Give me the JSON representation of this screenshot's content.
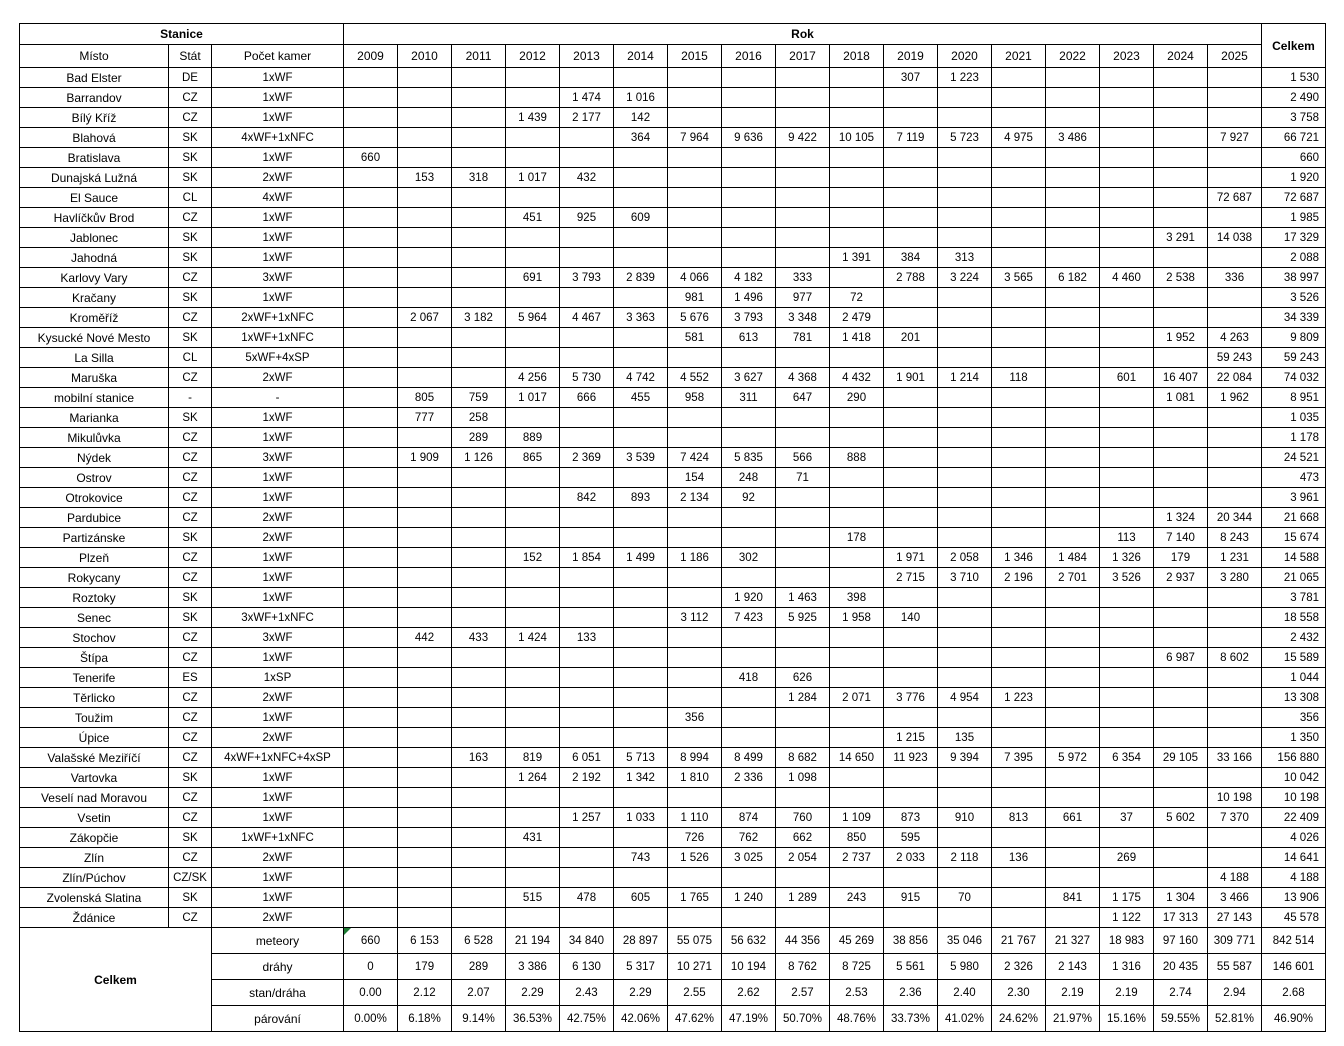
{
  "header": {
    "stanice": "Stanice",
    "rok": "Rok",
    "celkem": "Celkem",
    "misto": "Místo",
    "stat": "Stát",
    "pocet_kamer": "Počet kamer",
    "years": [
      "2009",
      "2010",
      "2011",
      "2012",
      "2013",
      "2014",
      "2015",
      "2016",
      "2017",
      "2018",
      "2019",
      "2020",
      "2021",
      "2022",
      "2023",
      "2024",
      "2025"
    ]
  },
  "rows": [
    {
      "misto": "Bad Elster",
      "stat": "DE",
      "kamery": "1xWF",
      "values": [
        "",
        "",
        "",
        "",
        "",
        "",
        "",
        "",
        "",
        "",
        "307",
        "1 223",
        "",
        "",
        "",
        "",
        ""
      ],
      "celkem": "1 530"
    },
    {
      "misto": "Barrandov",
      "stat": "CZ",
      "kamery": "1xWF",
      "values": [
        "",
        "",
        "",
        "",
        "1 474",
        "1 016",
        "",
        "",
        "",
        "",
        "",
        "",
        "",
        "",
        "",
        "",
        ""
      ],
      "celkem": "2 490"
    },
    {
      "misto": "Bílý Kříž",
      "stat": "CZ",
      "kamery": "1xWF",
      "values": [
        "",
        "",
        "",
        "1 439",
        "2 177",
        "142",
        "",
        "",
        "",
        "",
        "",
        "",
        "",
        "",
        "",
        "",
        ""
      ],
      "celkem": "3 758"
    },
    {
      "misto": "Blahová",
      "stat": "SK",
      "kamery": "4xWF+1xNFC",
      "values": [
        "",
        "",
        "",
        "",
        "",
        "364",
        "7 964",
        "9 636",
        "9 422",
        "10 105",
        "7 119",
        "5 723",
        "4 975",
        "3 486",
        "",
        "",
        "7 927"
      ],
      "celkem": "66 721"
    },
    {
      "misto": "Bratislava",
      "stat": "SK",
      "kamery": "1xWF",
      "values": [
        "660",
        "",
        "",
        "",
        "",
        "",
        "",
        "",
        "",
        "",
        "",
        "",
        "",
        "",
        "",
        "",
        ""
      ],
      "celkem": "660"
    },
    {
      "misto": "Dunajská Lužná",
      "stat": "SK",
      "kamery": "2xWF",
      "values": [
        "",
        "153",
        "318",
        "1 017",
        "432",
        "",
        "",
        "",
        "",
        "",
        "",
        "",
        "",
        "",
        "",
        "",
        ""
      ],
      "celkem": "1 920"
    },
    {
      "misto": "El Sauce",
      "stat": "CL",
      "kamery": "4xWF",
      "values": [
        "",
        "",
        "",
        "",
        "",
        "",
        "",
        "",
        "",
        "",
        "",
        "",
        "",
        "",
        "",
        "",
        "72 687"
      ],
      "celkem": "72 687"
    },
    {
      "misto": "Havlíčkův Brod",
      "stat": "CZ",
      "kamery": "1xWF",
      "values": [
        "",
        "",
        "",
        "451",
        "925",
        "609",
        "",
        "",
        "",
        "",
        "",
        "",
        "",
        "",
        "",
        "",
        ""
      ],
      "celkem": "1 985"
    },
    {
      "misto": "Jablonec",
      "stat": "SK",
      "kamery": "1xWF",
      "values": [
        "",
        "",
        "",
        "",
        "",
        "",
        "",
        "",
        "",
        "",
        "",
        "",
        "",
        "",
        "",
        "3 291",
        "14 038"
      ],
      "celkem": "17 329"
    },
    {
      "misto": "Jahodná",
      "stat": "SK",
      "kamery": "1xWF",
      "values": [
        "",
        "",
        "",
        "",
        "",
        "",
        "",
        "",
        "",
        "1 391",
        "384",
        "313",
        "",
        "",
        "",
        "",
        ""
      ],
      "celkem": "2 088"
    },
    {
      "misto": "Karlovy Vary",
      "stat": "CZ",
      "kamery": "3xWF",
      "values": [
        "",
        "",
        "",
        "691",
        "3 793",
        "2 839",
        "4 066",
        "4 182",
        "333",
        "",
        "2 788",
        "3 224",
        "3 565",
        "6 182",
        "4 460",
        "2 538",
        "336"
      ],
      "celkem": "38 997"
    },
    {
      "misto": "Kračany",
      "stat": "SK",
      "kamery": "1xWF",
      "values": [
        "",
        "",
        "",
        "",
        "",
        "",
        "981",
        "1 496",
        "977",
        "72",
        "",
        "",
        "",
        "",
        "",
        "",
        ""
      ],
      "celkem": "3 526"
    },
    {
      "misto": "Kroměříž",
      "stat": "CZ",
      "kamery": "2xWF+1xNFC",
      "values": [
        "",
        "2 067",
        "3 182",
        "5 964",
        "4 467",
        "3 363",
        "5 676",
        "3 793",
        "3 348",
        "2 479",
        "",
        "",
        "",
        "",
        "",
        "",
        ""
      ],
      "celkem": "34 339"
    },
    {
      "misto": "Kysucké Nové Mesto",
      "stat": "SK",
      "kamery": "1xWF+1xNFC",
      "values": [
        "",
        "",
        "",
        "",
        "",
        "",
        "581",
        "613",
        "781",
        "1 418",
        "201",
        "",
        "",
        "",
        "",
        "1 952",
        "4 263"
      ],
      "celkem": "9 809"
    },
    {
      "misto": "La Silla",
      "stat": "CL",
      "kamery": "5xWF+4xSP",
      "values": [
        "",
        "",
        "",
        "",
        "",
        "",
        "",
        "",
        "",
        "",
        "",
        "",
        "",
        "",
        "",
        "",
        "59 243"
      ],
      "celkem": "59 243"
    },
    {
      "misto": "Maruška",
      "stat": "CZ",
      "kamery": "2xWF",
      "values": [
        "",
        "",
        "",
        "4 256",
        "5 730",
        "4 742",
        "4 552",
        "3 627",
        "4 368",
        "4 432",
        "1 901",
        "1 214",
        "118",
        "",
        "601",
        "16 407",
        "22 084"
      ],
      "celkem": "74 032"
    },
    {
      "misto": "mobilní stanice",
      "stat": "-",
      "kamery": "-",
      "values": [
        "",
        "805",
        "759",
        "1 017",
        "666",
        "455",
        "958",
        "311",
        "647",
        "290",
        "",
        "",
        "",
        "",
        "",
        "1 081",
        "1 962"
      ],
      "celkem": "8 951"
    },
    {
      "misto": "Marianka",
      "stat": "SK",
      "kamery": "1xWF",
      "values": [
        "",
        "777",
        "258",
        "",
        "",
        "",
        "",
        "",
        "",
        "",
        "",
        "",
        "",
        "",
        "",
        "",
        ""
      ],
      "celkem": "1 035"
    },
    {
      "misto": "Mikulůvka",
      "stat": "CZ",
      "kamery": "1xWF",
      "values": [
        "",
        "",
        "289",
        "889",
        "",
        "",
        "",
        "",
        "",
        "",
        "",
        "",
        "",
        "",
        "",
        "",
        ""
      ],
      "celkem": "1 178"
    },
    {
      "misto": "Nýdek",
      "stat": "CZ",
      "kamery": "3xWF",
      "values": [
        "",
        "1 909",
        "1 126",
        "865",
        "2 369",
        "3 539",
        "7 424",
        "5 835",
        "566",
        "888",
        "",
        "",
        "",
        "",
        "",
        "",
        ""
      ],
      "celkem": "24 521"
    },
    {
      "misto": "Ostrov",
      "stat": "CZ",
      "kamery": "1xWF",
      "values": [
        "",
        "",
        "",
        "",
        "",
        "",
        "154",
        "248",
        "71",
        "",
        "",
        "",
        "",
        "",
        "",
        "",
        ""
      ],
      "celkem": "473"
    },
    {
      "misto": "Otrokovice",
      "stat": "CZ",
      "kamery": "1xWF",
      "values": [
        "",
        "",
        "",
        "",
        "842",
        "893",
        "2 134",
        "92",
        "",
        "",
        "",
        "",
        "",
        "",
        "",
        "",
        ""
      ],
      "celkem": "3 961"
    },
    {
      "misto": "Pardubice",
      "stat": "CZ",
      "kamery": "2xWF",
      "values": [
        "",
        "",
        "",
        "",
        "",
        "",
        "",
        "",
        "",
        "",
        "",
        "",
        "",
        "",
        "",
        "1 324",
        "20 344"
      ],
      "celkem": "21 668"
    },
    {
      "misto": "Partizánske",
      "stat": "SK",
      "kamery": "2xWF",
      "values": [
        "",
        "",
        "",
        "",
        "",
        "",
        "",
        "",
        "",
        "178",
        "",
        "",
        "",
        "",
        "113",
        "7 140",
        "8 243"
      ],
      "celkem": "15 674"
    },
    {
      "misto": "Plzeň",
      "stat": "CZ",
      "kamery": "1xWF",
      "values": [
        "",
        "",
        "",
        "152",
        "1 854",
        "1 499",
        "1 186",
        "302",
        "",
        "",
        "1 971",
        "2 058",
        "1 346",
        "1 484",
        "1 326",
        "179",
        "1 231"
      ],
      "celkem": "14 588"
    },
    {
      "misto": "Rokycany",
      "stat": "CZ",
      "kamery": "1xWF",
      "values": [
        "",
        "",
        "",
        "",
        "",
        "",
        "",
        "",
        "",
        "",
        "2 715",
        "3 710",
        "2 196",
        "2 701",
        "3 526",
        "2 937",
        "3 280"
      ],
      "celkem": "21 065"
    },
    {
      "misto": "Roztoky",
      "stat": "SK",
      "kamery": "1xWF",
      "values": [
        "",
        "",
        "",
        "",
        "",
        "",
        "",
        "1 920",
        "1 463",
        "398",
        "",
        "",
        "",
        "",
        "",
        "",
        ""
      ],
      "celkem": "3 781"
    },
    {
      "misto": "Senec",
      "stat": "SK",
      "kamery": "3xWF+1xNFC",
      "values": [
        "",
        "",
        "",
        "",
        "",
        "",
        "3 112",
        "7 423",
        "5 925",
        "1 958",
        "140",
        "",
        "",
        "",
        "",
        "",
        ""
      ],
      "celkem": "18 558"
    },
    {
      "misto": "Stochov",
      "stat": "CZ",
      "kamery": "3xWF",
      "values": [
        "",
        "442",
        "433",
        "1 424",
        "133",
        "",
        "",
        "",
        "",
        "",
        "",
        "",
        "",
        "",
        "",
        "",
        ""
      ],
      "celkem": "2 432"
    },
    {
      "misto": "Štípa",
      "stat": "CZ",
      "kamery": "1xWF",
      "values": [
        "",
        "",
        "",
        "",
        "",
        "",
        "",
        "",
        "",
        "",
        "",
        "",
        "",
        "",
        "",
        "6 987",
        "8 602"
      ],
      "celkem": "15 589"
    },
    {
      "misto": "Tenerife",
      "stat": "ES",
      "kamery": "1xSP",
      "values": [
        "",
        "",
        "",
        "",
        "",
        "",
        "",
        "418",
        "626",
        "",
        "",
        "",
        "",
        "",
        "",
        "",
        ""
      ],
      "celkem": "1 044"
    },
    {
      "misto": "Těrlicko",
      "stat": "CZ",
      "kamery": "2xWF",
      "values": [
        "",
        "",
        "",
        "",
        "",
        "",
        "",
        "",
        "1 284",
        "2 071",
        "3 776",
        "4 954",
        "1 223",
        "",
        "",
        "",
        ""
      ],
      "celkem": "13 308"
    },
    {
      "misto": "Toužim",
      "stat": "CZ",
      "kamery": "1xWF",
      "values": [
        "",
        "",
        "",
        "",
        "",
        "",
        "356",
        "",
        "",
        "",
        "",
        "",
        "",
        "",
        "",
        "",
        ""
      ],
      "celkem": "356"
    },
    {
      "misto": "Úpice",
      "stat": "CZ",
      "kamery": "2xWF",
      "values": [
        "",
        "",
        "",
        "",
        "",
        "",
        "",
        "",
        "",
        "",
        "1 215",
        "135",
        "",
        "",
        "",
        "",
        ""
      ],
      "celkem": "1 350"
    },
    {
      "misto": "Valašské Meziříčí",
      "stat": "CZ",
      "kamery": "4xWF+1xNFC+4xSP",
      "values": [
        "",
        "",
        "163",
        "819",
        "6 051",
        "5 713",
        "8 994",
        "8 499",
        "8 682",
        "14 650",
        "11 923",
        "9 394",
        "7 395",
        "5 972",
        "6 354",
        "29 105",
        "33 166"
      ],
      "celkem": "156 880"
    },
    {
      "misto": "Vartovka",
      "stat": "SK",
      "kamery": "1xWF",
      "values": [
        "",
        "",
        "",
        "1 264",
        "2 192",
        "1 342",
        "1 810",
        "2 336",
        "1 098",
        "",
        "",
        "",
        "",
        "",
        "",
        "",
        ""
      ],
      "celkem": "10 042"
    },
    {
      "misto": "Veselí nad Moravou",
      "stat": "CZ",
      "kamery": "1xWF",
      "values": [
        "",
        "",
        "",
        "",
        "",
        "",
        "",
        "",
        "",
        "",
        "",
        "",
        "",
        "",
        "",
        "",
        "10 198"
      ],
      "celkem": "10 198"
    },
    {
      "misto": "Vsetin",
      "stat": "CZ",
      "kamery": "1xWF",
      "values": [
        "",
        "",
        "",
        "",
        "1 257",
        "1 033",
        "1 110",
        "874",
        "760",
        "1 109",
        "873",
        "910",
        "813",
        "661",
        "37",
        "5 602",
        "7 370"
      ],
      "celkem": "22 409"
    },
    {
      "misto": "Zákopčie",
      "stat": "SK",
      "kamery": "1xWF+1xNFC",
      "values": [
        "",
        "",
        "",
        "431",
        "",
        "",
        "726",
        "762",
        "662",
        "850",
        "595",
        "",
        "",
        "",
        "",
        "",
        ""
      ],
      "celkem": "4 026"
    },
    {
      "misto": "Zlín",
      "stat": "CZ",
      "kamery": "2xWF",
      "values": [
        "",
        "",
        "",
        "",
        "",
        "743",
        "1 526",
        "3 025",
        "2 054",
        "2 737",
        "2 033",
        "2 118",
        "136",
        "",
        "269",
        "",
        ""
      ],
      "celkem": "14 641"
    },
    {
      "misto": "Zlín/Púchov",
      "stat": "CZ/SK",
      "kamery": "1xWF",
      "values": [
        "",
        "",
        "",
        "",
        "",
        "",
        "",
        "",
        "",
        "",
        "",
        "",
        "",
        "",
        "",
        "",
        "4 188"
      ],
      "celkem": "4 188"
    },
    {
      "misto": "Zvolenská Slatina",
      "stat": "SK",
      "kamery": "1xWF",
      "values": [
        "",
        "",
        "",
        "515",
        "478",
        "605",
        "1 765",
        "1 240",
        "1 289",
        "243",
        "915",
        "70",
        "",
        "841",
        "1 175",
        "1 304",
        "3 466"
      ],
      "celkem": "13 906"
    },
    {
      "misto": "Ždánice",
      "stat": "CZ",
      "kamery": "2xWF",
      "values": [
        "",
        "",
        "",
        "",
        "",
        "",
        "",
        "",
        "",
        "",
        "",
        "",
        "",
        "",
        "1 122",
        "17 313",
        "27 143"
      ],
      "celkem": "45 578"
    }
  ],
  "footer": {
    "celkem_label": "Celkem",
    "indicator_color": "#1e7b34",
    "rows": [
      {
        "label": "meteory",
        "values": [
          "660",
          "6 153",
          "6 528",
          "21 194",
          "34 840",
          "28 897",
          "55 075",
          "56 632",
          "44 356",
          "45 269",
          "38 856",
          "35 046",
          "21 767",
          "21 327",
          "18 983",
          "97 160",
          "309 771"
        ],
        "celkem": "842 514"
      },
      {
        "label": "dráhy",
        "values": [
          "0",
          "179",
          "289",
          "3 386",
          "6 130",
          "5 317",
          "10 271",
          "10 194",
          "8 762",
          "8 725",
          "5 561",
          "5 980",
          "2 326",
          "2 143",
          "1 316",
          "20 435",
          "55 587"
        ],
        "celkem": "146 601"
      },
      {
        "label": "stan/dráha",
        "values": [
          "0.00",
          "2.12",
          "2.07",
          "2.29",
          "2.43",
          "2.29",
          "2.55",
          "2.62",
          "2.57",
          "2.53",
          "2.36",
          "2.40",
          "2.30",
          "2.19",
          "2.19",
          "2.74",
          "2.94"
        ],
        "celkem": "2.68"
      },
      {
        "label": "párování",
        "values": [
          "0.00%",
          "6.18%",
          "9.14%",
          "36.53%",
          "42.75%",
          "42.06%",
          "47.62%",
          "47.19%",
          "50.70%",
          "48.76%",
          "33.73%",
          "41.02%",
          "24.62%",
          "21.97%",
          "15.16%",
          "59.55%",
          "52.81%"
        ],
        "celkem": "46.90%"
      }
    ]
  }
}
